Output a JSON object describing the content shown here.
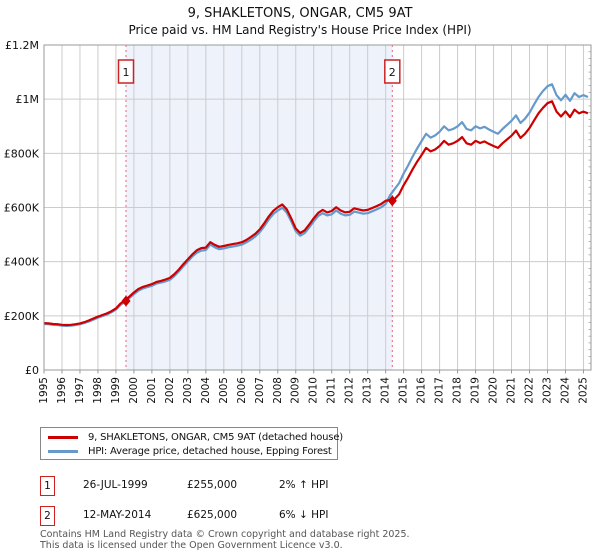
{
  "title": "9, SHAKLETONS, ONGAR, CM5 9AT",
  "subtitle": "Price paid vs. HM Land Registry's House Price Index (HPI)",
  "chart_data": {
    "type": "line",
    "units": "GBP thousands",
    "xlim": [
      1995,
      2025.42
    ],
    "ylim": [
      0,
      1200
    ],
    "x_ticks": [
      1995,
      1996,
      1997,
      1998,
      1999,
      2000,
      2001,
      2002,
      2003,
      2004,
      2005,
      2006,
      2007,
      2008,
      2009,
      2010,
      2011,
      2012,
      2013,
      2014,
      2015,
      2016,
      2017,
      2018,
      2019,
      2020,
      2021,
      2022,
      2023,
      2024,
      2025
    ],
    "y_ticks": [
      {
        "value": 0,
        "label": "£0"
      },
      {
        "value": 200,
        "label": "£200K"
      },
      {
        "value": 400,
        "label": "£400K"
      },
      {
        "value": 600,
        "label": "£600K"
      },
      {
        "value": 800,
        "label": "£800K"
      },
      {
        "value": 1000,
        "label": "£1M"
      },
      {
        "value": 1200,
        "label": "£1.2M"
      }
    ],
    "colors": {
      "grid": "#cccccc",
      "border": "#999999",
      "shade": "#eef2fb",
      "sale_line": "#e8657a",
      "sale_marker": "#cc0000",
      "flag_border": "#cc2222"
    },
    "x": [
      1995,
      1995.25,
      1995.5,
      1995.75,
      1996,
      1996.25,
      1996.5,
      1996.75,
      1997,
      1997.25,
      1997.5,
      1997.75,
      1998,
      1998.25,
      1998.5,
      1998.75,
      1999,
      1999.25,
      1999.5,
      1999.75,
      2000,
      2000.25,
      2000.5,
      2000.75,
      2001,
      2001.25,
      2001.5,
      2001.75,
      2002,
      2002.25,
      2002.5,
      2002.75,
      2003,
      2003.25,
      2003.5,
      2003.75,
      2004,
      2004.25,
      2004.5,
      2004.75,
      2005,
      2005.25,
      2005.5,
      2005.75,
      2006,
      2006.25,
      2006.5,
      2006.75,
      2007,
      2007.25,
      2007.5,
      2007.75,
      2008,
      2008.25,
      2008.5,
      2008.75,
      2009,
      2009.25,
      2009.5,
      2009.75,
      2010,
      2010.25,
      2010.5,
      2010.75,
      2011,
      2011.25,
      2011.5,
      2011.75,
      2012,
      2012.25,
      2012.5,
      2012.75,
      2013,
      2013.25,
      2013.5,
      2013.75,
      2014,
      2014.25,
      2014.5,
      2014.75,
      2015,
      2015.25,
      2015.5,
      2015.75,
      2016,
      2016.25,
      2016.5,
      2016.75,
      2017,
      2017.25,
      2017.5,
      2017.75,
      2018,
      2018.25,
      2018.5,
      2018.75,
      2019,
      2019.25,
      2019.5,
      2019.75,
      2020,
      2020.25,
      2020.5,
      2020.75,
      2021,
      2021.25,
      2021.5,
      2021.75,
      2022,
      2022.25,
      2022.5,
      2022.75,
      2023,
      2023.25,
      2023.5,
      2023.75,
      2024,
      2024.25,
      2024.5,
      2024.75,
      2025,
      2025.25
    ],
    "series": [
      {
        "name": "9, SHAKLETONS, ONGAR, CM5 9AT (detached house)",
        "color": "#cc0000",
        "values": [
          173,
          172,
          170,
          169,
          167,
          166,
          167,
          169,
          172,
          177,
          183,
          190,
          197,
          203,
          209,
          217,
          227,
          245,
          257,
          271,
          286,
          299,
          307,
          312,
          317,
          325,
          329,
          334,
          340,
          354,
          371,
          391,
          409,
          427,
          442,
          450,
          452,
          472,
          462,
          455,
          458,
          462,
          465,
          468,
          472,
          480,
          491,
          503,
          519,
          542,
          567,
          588,
          601,
          611,
          593,
          560,
          523,
          506,
          516,
          537,
          560,
          580,
          591,
          582,
          587,
          601,
          589,
          582,
          584,
          597,
          593,
          589,
          591,
          598,
          605,
          613,
          625,
          628,
          631,
          649,
          682,
          710,
          741,
          769,
          794,
          820,
          807,
          814,
          827,
          846,
          832,
          837,
          846,
          860,
          837,
          832,
          846,
          838,
          844,
          835,
          827,
          820,
          837,
          851,
          865,
          884,
          857,
          872,
          893,
          921,
          948,
          968,
          985,
          992,
          954,
          936,
          955,
          934,
          961,
          948,
          954,
          948
        ]
      },
      {
        "name": "HPI: Average price, detached house, Epping Forest",
        "color": "#6699cc",
        "values": [
          170,
          169,
          167,
          166,
          164,
          163,
          164,
          166,
          169,
          174,
          179,
          186,
          193,
          199,
          205,
          213,
          223,
          240,
          252,
          266,
          280,
          293,
          301,
          306,
          311,
          319,
          323,
          327,
          333,
          347,
          364,
          383,
          401,
          419,
          433,
          441,
          443,
          463,
          453,
          446,
          449,
          453,
          456,
          459,
          463,
          471,
          481,
          493,
          509,
          531,
          556,
          576,
          589,
          599,
          581,
          549,
          513,
          496,
          506,
          526,
          549,
          569,
          579,
          571,
          575,
          589,
          577,
          571,
          573,
          585,
          581,
          577,
          579,
          586,
          593,
          601,
          613,
          645,
          668,
          690,
          725,
          755,
          788,
          818,
          845,
          872,
          858,
          866,
          880,
          900,
          885,
          890,
          900,
          915,
          890,
          885,
          900,
          892,
          898,
          888,
          880,
          872,
          890,
          905,
          920,
          940,
          912,
          928,
          950,
          980,
          1008,
          1030,
          1048,
          1055,
          1015,
          996,
          1016,
          994,
          1022,
          1008,
          1015,
          1008
        ]
      }
    ],
    "sales": [
      {
        "n": "1",
        "x": 1999.56,
        "value": 255
      },
      {
        "n": "2",
        "x": 2014.37,
        "value": 625
      }
    ]
  },
  "transactions": [
    {
      "id": "1",
      "date": "26-JUL-1999",
      "price": "£255,000",
      "hpi": "2% ↑ HPI"
    },
    {
      "id": "2",
      "date": "12-MAY-2014",
      "price": "£625,000",
      "hpi": "6% ↓ HPI"
    }
  ],
  "footer": {
    "line1": "Contains HM Land Registry data © Crown copyright and database right 2025.",
    "line2": "This data is licensed under the Open Government Licence v3.0."
  }
}
